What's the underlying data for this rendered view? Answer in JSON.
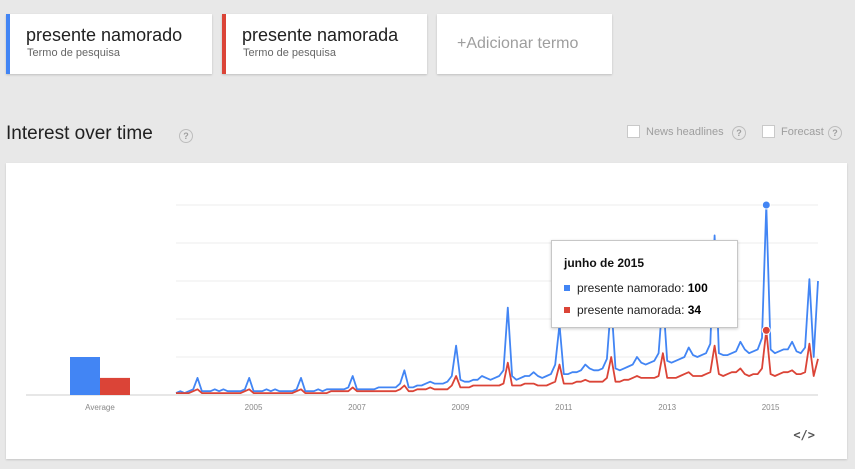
{
  "terms": [
    {
      "name": "presente namorado",
      "subtitle": "Termo de pesquisa",
      "color": "#4285f4"
    },
    {
      "name": "presente namorada",
      "subtitle": "Termo de pesquisa",
      "color": "#db4437"
    }
  ],
  "add_term": {
    "plus": "+",
    "label": "Adicionar termo"
  },
  "section": {
    "title": "Interest over time",
    "help_glyph": "?",
    "options": [
      {
        "label": "News headlines",
        "checked": false
      },
      {
        "label": "Forecast",
        "checked": false
      }
    ]
  },
  "tooltip": {
    "title": "junho de 2015",
    "rows": [
      {
        "label": "presente namorado:",
        "value": "100",
        "color": "#4285f4"
      },
      {
        "label": "presente namorada:",
        "value": "34",
        "color": "#db4437"
      }
    ]
  },
  "embed_label": "</>",
  "chart_data": {
    "type": "line",
    "ylim": [
      0,
      100
    ],
    "grid": true,
    "average": {
      "label": "Average",
      "values": [
        20,
        9
      ]
    },
    "x_ticks": [
      "2005",
      "2007",
      "2009",
      "2011",
      "2013",
      "2015"
    ],
    "x_range": [
      "2004-01",
      "2016-06"
    ],
    "highlight": "2015-06",
    "series": [
      {
        "name": "presente namorado",
        "color": "#4285f4"
      },
      {
        "name": "presente namorada",
        "color": "#db4437"
      }
    ],
    "points": [
      [
        "2004-01",
        1,
        1
      ],
      [
        "2004-02",
        2,
        1
      ],
      [
        "2004-03",
        1,
        1
      ],
      [
        "2004-04",
        2,
        1
      ],
      [
        "2004-05",
        3,
        2
      ],
      [
        "2004-06",
        9,
        3
      ],
      [
        "2004-07",
        2,
        1
      ],
      [
        "2004-08",
        2,
        1
      ],
      [
        "2004-09",
        2,
        1
      ],
      [
        "2004-10",
        3,
        1
      ],
      [
        "2004-11",
        2,
        1
      ],
      [
        "2004-12",
        3,
        1
      ],
      [
        "2005-01",
        2,
        1
      ],
      [
        "2005-02",
        2,
        1
      ],
      [
        "2005-03",
        2,
        1
      ],
      [
        "2005-04",
        2,
        1
      ],
      [
        "2005-05",
        3,
        2
      ],
      [
        "2005-06",
        9,
        3
      ],
      [
        "2005-07",
        2,
        1
      ],
      [
        "2005-08",
        2,
        1
      ],
      [
        "2005-09",
        2,
        1
      ],
      [
        "2005-10",
        3,
        1
      ],
      [
        "2005-11",
        2,
        1
      ],
      [
        "2005-12",
        3,
        1
      ],
      [
        "2006-01",
        2,
        1
      ],
      [
        "2006-02",
        2,
        1
      ],
      [
        "2006-03",
        2,
        1
      ],
      [
        "2006-04",
        2,
        1
      ],
      [
        "2006-05",
        3,
        2
      ],
      [
        "2006-06",
        9,
        3
      ],
      [
        "2006-07",
        2,
        1
      ],
      [
        "2006-08",
        2,
        1
      ],
      [
        "2006-09",
        2,
        1
      ],
      [
        "2006-10",
        3,
        1
      ],
      [
        "2006-11",
        2,
        1
      ],
      [
        "2006-12",
        3,
        1
      ],
      [
        "2007-01",
        3,
        2
      ],
      [
        "2007-02",
        3,
        2
      ],
      [
        "2007-03",
        3,
        2
      ],
      [
        "2007-04",
        3,
        2
      ],
      [
        "2007-05",
        4,
        2
      ],
      [
        "2007-06",
        10,
        4
      ],
      [
        "2007-07",
        3,
        2
      ],
      [
        "2007-08",
        3,
        2
      ],
      [
        "2007-09",
        3,
        2
      ],
      [
        "2007-10",
        3,
        2
      ],
      [
        "2007-11",
        3,
        2
      ],
      [
        "2007-12",
        4,
        2
      ],
      [
        "2008-01",
        4,
        2
      ],
      [
        "2008-02",
        4,
        2
      ],
      [
        "2008-03",
        4,
        2
      ],
      [
        "2008-04",
        4,
        2
      ],
      [
        "2008-05",
        6,
        3
      ],
      [
        "2008-06",
        13,
        5
      ],
      [
        "2008-07",
        4,
        2
      ],
      [
        "2008-08",
        4,
        2
      ],
      [
        "2008-09",
        5,
        3
      ],
      [
        "2008-10",
        5,
        3
      ],
      [
        "2008-11",
        6,
        3
      ],
      [
        "2008-12",
        7,
        4
      ],
      [
        "2009-01",
        6,
        3
      ],
      [
        "2009-02",
        6,
        3
      ],
      [
        "2009-03",
        6,
        3
      ],
      [
        "2009-04",
        7,
        3
      ],
      [
        "2009-05",
        10,
        5
      ],
      [
        "2009-06",
        26,
        10
      ],
      [
        "2009-07",
        8,
        4
      ],
      [
        "2009-08",
        7,
        4
      ],
      [
        "2009-09",
        7,
        4
      ],
      [
        "2009-10",
        8,
        5
      ],
      [
        "2009-11",
        8,
        5
      ],
      [
        "2009-12",
        10,
        5
      ],
      [
        "2010-01",
        9,
        5
      ],
      [
        "2010-02",
        8,
        5
      ],
      [
        "2010-03",
        9,
        5
      ],
      [
        "2010-04",
        10,
        5
      ],
      [
        "2010-05",
        13,
        6
      ],
      [
        "2010-06",
        46,
        17
      ],
      [
        "2010-07",
        10,
        5
      ],
      [
        "2010-08",
        8,
        5
      ],
      [
        "2010-09",
        9,
        5
      ],
      [
        "2010-10",
        10,
        6
      ],
      [
        "2010-11",
        10,
        6
      ],
      [
        "2010-12",
        12,
        6
      ],
      [
        "2011-01",
        10,
        5
      ],
      [
        "2011-02",
        9,
        5
      ],
      [
        "2011-03",
        10,
        5
      ],
      [
        "2011-04",
        11,
        6
      ],
      [
        "2011-05",
        16,
        7
      ],
      [
        "2011-06",
        37,
        16
      ],
      [
        "2011-07",
        11,
        6
      ],
      [
        "2011-08",
        11,
        6
      ],
      [
        "2011-09",
        12,
        6
      ],
      [
        "2011-10",
        12,
        7
      ],
      [
        "2011-11",
        13,
        7
      ],
      [
        "2011-12",
        16,
        8
      ],
      [
        "2012-01",
        14,
        7
      ],
      [
        "2012-02",
        13,
        7
      ],
      [
        "2012-03",
        13,
        7
      ],
      [
        "2012-04",
        14,
        7
      ],
      [
        "2012-05",
        19,
        9
      ],
      [
        "2012-06",
        49,
        20
      ],
      [
        "2012-07",
        14,
        7
      ],
      [
        "2012-08",
        13,
        7
      ],
      [
        "2012-09",
        14,
        8
      ],
      [
        "2012-10",
        15,
        8
      ],
      [
        "2012-11",
        16,
        9
      ],
      [
        "2012-12",
        20,
        10
      ],
      [
        "2013-01",
        17,
        9
      ],
      [
        "2013-02",
        16,
        9
      ],
      [
        "2013-03",
        17,
        9
      ],
      [
        "2013-04",
        18,
        9
      ],
      [
        "2013-05",
        22,
        10
      ],
      [
        "2013-06",
        52,
        22
      ],
      [
        "2013-07",
        18,
        9
      ],
      [
        "2013-08",
        17,
        9
      ],
      [
        "2013-09",
        18,
        9
      ],
      [
        "2013-10",
        19,
        10
      ],
      [
        "2013-11",
        20,
        11
      ],
      [
        "2013-12",
        25,
        12
      ],
      [
        "2014-01",
        21,
        10
      ],
      [
        "2014-02",
        20,
        10
      ],
      [
        "2014-03",
        21,
        10
      ],
      [
        "2014-04",
        22,
        11
      ],
      [
        "2014-05",
        27,
        12
      ],
      [
        "2014-06",
        84,
        26
      ],
      [
        "2014-07",
        22,
        11
      ],
      [
        "2014-08",
        21,
        10
      ],
      [
        "2014-09",
        21,
        11
      ],
      [
        "2014-10",
        22,
        12
      ],
      [
        "2014-11",
        23,
        12
      ],
      [
        "2014-12",
        28,
        14
      ],
      [
        "2015-01",
        24,
        11
      ],
      [
        "2015-02",
        22,
        10
      ],
      [
        "2015-03",
        23,
        11
      ],
      [
        "2015-04",
        24,
        11
      ],
      [
        "2015-05",
        30,
        14
      ],
      [
        "2015-06",
        100,
        34
      ],
      [
        "2015-07",
        24,
        11
      ],
      [
        "2015-08",
        22,
        10
      ],
      [
        "2015-09",
        23,
        11
      ],
      [
        "2015-10",
        24,
        12
      ],
      [
        "2015-11",
        24,
        12
      ],
      [
        "2015-12",
        28,
        13
      ],
      [
        "2016-01",
        23,
        11
      ],
      [
        "2016-02",
        22,
        11
      ],
      [
        "2016-03",
        25,
        12
      ],
      [
        "2016-04",
        61,
        27
      ],
      [
        "2016-05",
        20,
        10
      ],
      [
        "2016-06",
        60,
        19
      ]
    ]
  }
}
